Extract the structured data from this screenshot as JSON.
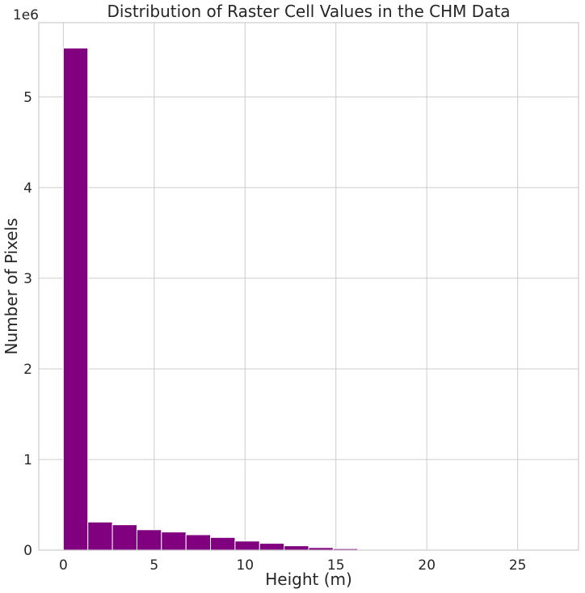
{
  "chart_data": {
    "type": "bar",
    "title": "Distribution of Raster Cell Values in the CHM Data",
    "xlabel": "Height (m)",
    "ylabel": "Number of Pixels",
    "y_offset_label": "1e6",
    "xlim": [
      -1.35,
      28.35
    ],
    "ylim": [
      0,
      5.82
    ],
    "x_ticks": [
      0,
      5,
      10,
      15,
      20,
      25
    ],
    "y_ticks": [
      0,
      1,
      2,
      3,
      4,
      5
    ],
    "bin_edges": [
      0,
      1.35,
      2.7,
      4.05,
      5.4,
      6.75,
      8.1,
      9.45,
      10.8,
      12.15,
      13.5,
      14.85,
      16.2,
      17.55,
      18.9,
      20.25,
      21.6,
      22.95,
      24.3,
      25.65,
      27.0
    ],
    "values": [
      5.54,
      0.31,
      0.28,
      0.225,
      0.2,
      0.17,
      0.14,
      0.1,
      0.075,
      0.048,
      0.028,
      0.016,
      0.008,
      0.004,
      0.002,
      0.001,
      0.0005,
      0.0003,
      0.0002,
      0.0001
    ],
    "bar_color": "#800080",
    "grid": true
  }
}
